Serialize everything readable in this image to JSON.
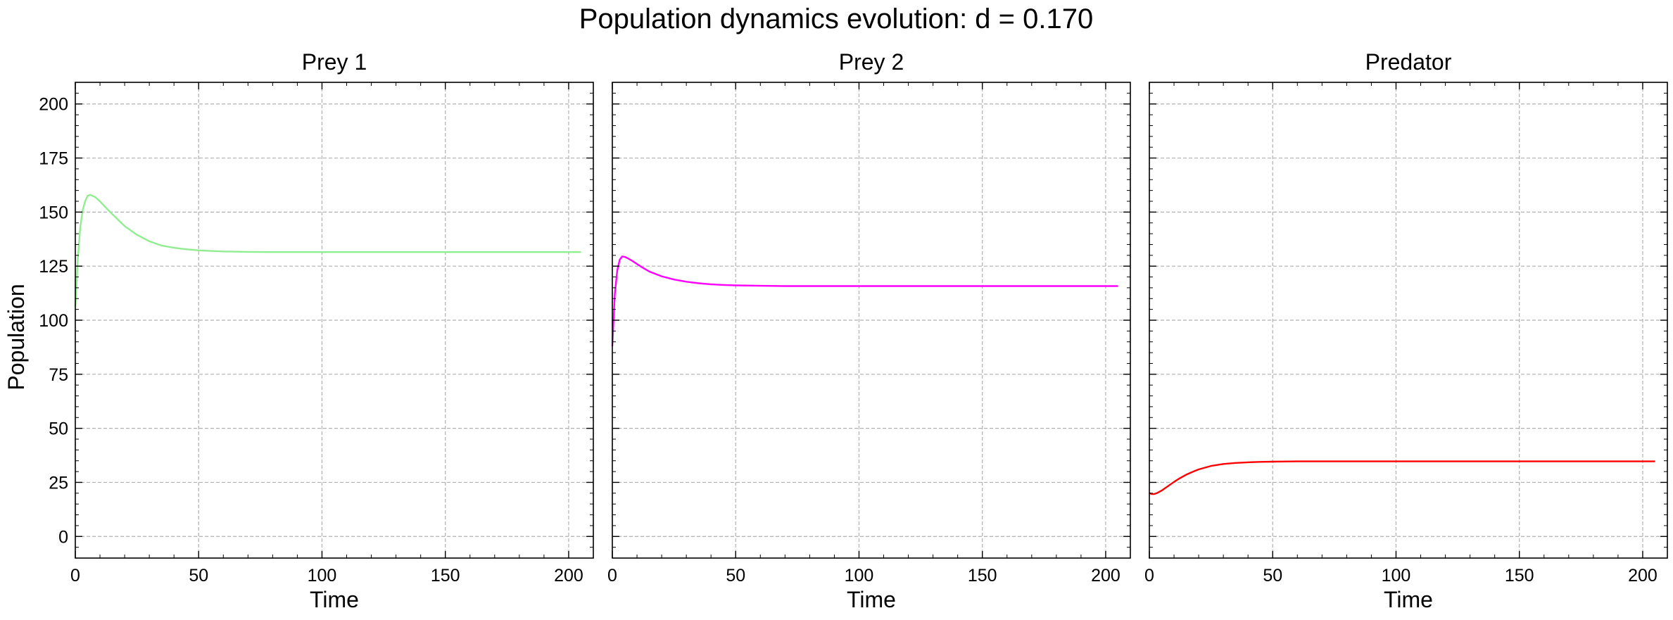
{
  "chart_data": {
    "title": "Population dynamics evolution: d = 0.170",
    "ylabel": "Population",
    "grid": true,
    "panels": [
      {
        "type": "line",
        "title": "Prey 1",
        "xlabel": "Time",
        "xlim": [
          0,
          210
        ],
        "ylim": [
          -10,
          210
        ],
        "xticks": [
          0,
          50,
          100,
          150,
          200
        ],
        "yticks": [
          0,
          25,
          50,
          75,
          100,
          125,
          150,
          175,
          200
        ],
        "color": "#90ee90",
        "series": [
          {
            "x": [
              0,
              1,
              2,
              3,
              4,
              5,
              6,
              8,
              10,
              12,
              15,
              20,
              25,
              30,
              35,
              40,
              45,
              50,
              60,
              70,
              80,
              100,
              120,
              150,
              180,
              205
            ],
            "y": [
              106,
              128,
              143,
              151,
              155,
              157.5,
              158,
              157,
              155,
              152.5,
              149,
              143.5,
              139.5,
              136.5,
              134.5,
              133.5,
              132.8,
              132.3,
              131.8,
              131.6,
              131.5,
              131.5,
              131.5,
              131.5,
              131.5,
              131.5
            ]
          }
        ]
      },
      {
        "type": "line",
        "title": "Prey 2",
        "xlabel": "Time",
        "xlim": [
          0,
          210
        ],
        "ylim": [
          -10,
          210
        ],
        "xticks": [
          0,
          50,
          100,
          150,
          200
        ],
        "yticks": [
          0,
          25,
          50,
          75,
          100,
          125,
          150,
          175,
          200
        ],
        "color": "#ff00ff",
        "series": [
          {
            "x": [
              0,
              1,
              2,
              3,
              4,
              5,
              6,
              8,
              10,
              12,
              15,
              20,
              25,
              30,
              35,
              40,
              45,
              50,
              60,
              70,
              80,
              100,
              120,
              150,
              180,
              205
            ],
            "y": [
              88,
              112,
              123,
              128,
              129.5,
              129.3,
              128.8,
              127.5,
              126,
              124.5,
              122.5,
              120.3,
              118.8,
              117.8,
              117.1,
              116.6,
              116.3,
              116.1,
              115.9,
              115.8,
              115.8,
              115.8,
              115.8,
              115.8,
              115.8,
              115.8
            ]
          }
        ]
      },
      {
        "type": "line",
        "title": "Predator",
        "xlabel": "Time",
        "xlim": [
          0,
          210
        ],
        "ylim": [
          -10,
          210
        ],
        "xticks": [
          0,
          50,
          100,
          150,
          200
        ],
        "yticks": [
          0,
          25,
          50,
          75,
          100,
          125,
          150,
          175,
          200
        ],
        "color": "#ff0000",
        "series": [
          {
            "x": [
              0,
              1,
              2,
              3,
              5,
              7,
              10,
              12,
              15,
              18,
              20,
              25,
              30,
              35,
              40,
              45,
              50,
              60,
              70,
              80,
              100,
              120,
              150,
              180,
              205
            ],
            "y": [
              20,
              19.6,
              19.6,
              20,
              21.2,
              22.8,
              25.2,
              26.7,
              28.6,
              30.1,
              31,
              32.6,
              33.5,
              34,
              34.3,
              34.5,
              34.6,
              34.7,
              34.7,
              34.7,
              34.7,
              34.7,
              34.7,
              34.7,
              34.7
            ]
          }
        ]
      }
    ]
  }
}
